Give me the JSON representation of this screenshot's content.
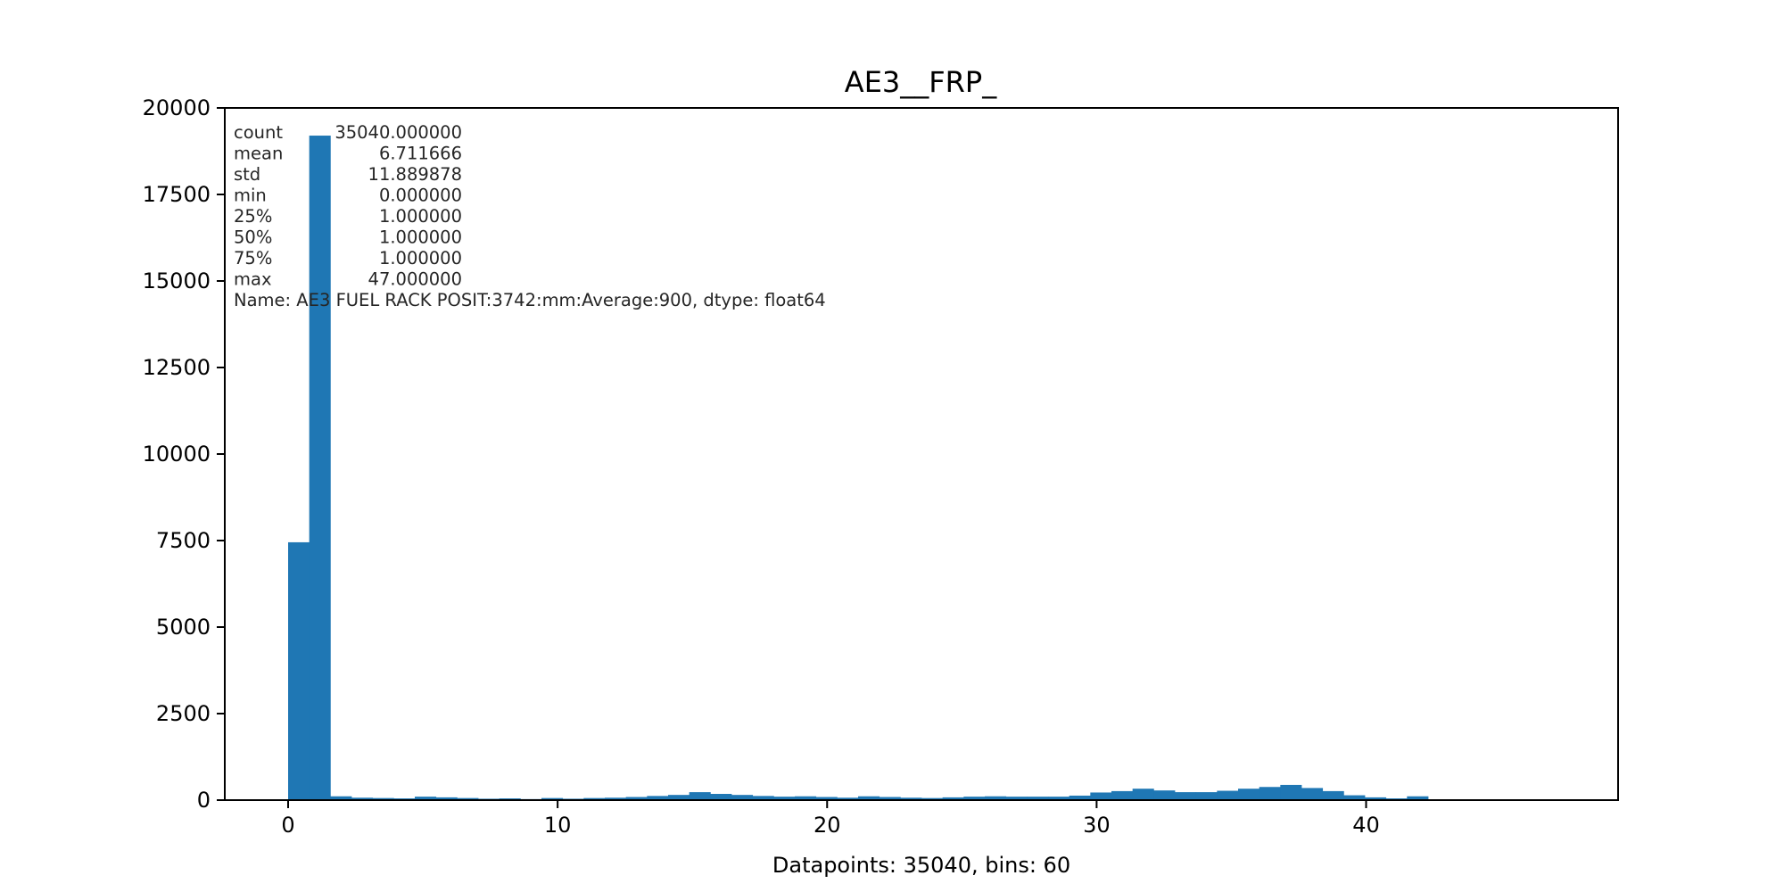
{
  "chart_data": {
    "type": "bar",
    "title": "AE3__FRP_",
    "xlabel": "Datapoints: 35040, bins: 60",
    "ylabel": "",
    "xlim": [
      -2.35,
      49.35
    ],
    "ylim": [
      0,
      20000
    ],
    "grid": false,
    "x_ticks": [
      0,
      10,
      20,
      30,
      40
    ],
    "y_ticks": [
      0,
      2500,
      5000,
      7500,
      10000,
      12500,
      15000,
      17500,
      20000
    ],
    "bin_edges": [
      0,
      0.7833,
      1.5667,
      2.35,
      3.1333,
      3.9167,
      4.7,
      5.4833,
      6.2667,
      7.05,
      7.8333,
      8.6167,
      9.4,
      10.1833,
      10.9667,
      11.75,
      12.5333,
      13.3167,
      14.1,
      14.8833,
      15.6667,
      16.45,
      17.2333,
      18.0167,
      18.8,
      19.5833,
      20.3667,
      21.15,
      21.9333,
      22.7167,
      23.5,
      24.2833,
      25.0667,
      25.85,
      26.6333,
      27.4167,
      28.2,
      28.9833,
      29.7667,
      30.55,
      31.3333,
      32.1167,
      32.9,
      33.6833,
      34.4667,
      35.25,
      36.0333,
      36.8167,
      37.6,
      38.3833,
      39.1667,
      39.95,
      40.7333,
      41.5167,
      42.3,
      43.0833,
      43.8667,
      44.65,
      45.4333,
      46.2167,
      47.0
    ],
    "values": [
      7450,
      19200,
      110,
      70,
      60,
      50,
      100,
      80,
      60,
      40,
      50,
      30,
      60,
      40,
      60,
      70,
      90,
      120,
      150,
      230,
      180,
      150,
      120,
      100,
      110,
      90,
      70,
      110,
      90,
      70,
      60,
      80,
      100,
      110,
      100,
      100,
      100,
      130,
      220,
      260,
      330,
      280,
      230,
      230,
      270,
      330,
      380,
      440,
      350,
      260,
      140,
      80,
      50,
      110,
      0,
      0,
      0,
      0,
      0,
      0
    ],
    "stats": {
      "lines": [
        {
          "label": "count",
          "value": "35040.000000"
        },
        {
          "label": "mean",
          "value": "6.711666"
        },
        {
          "label": "std",
          "value": "11.889878"
        },
        {
          "label": "min",
          "value": "0.000000"
        },
        {
          "label": "25%",
          "value": "1.000000"
        },
        {
          "label": "50%",
          "value": "1.000000"
        },
        {
          "label": "75%",
          "value": "1.000000"
        },
        {
          "label": "max",
          "value": "47.000000"
        }
      ],
      "name_line": "Name: AE3 FUEL RACK POSIT:3742:mm:Average:900, dtype: float64"
    },
    "colors": {
      "bar": "#1f77b4",
      "stats_text": "#262626"
    }
  }
}
